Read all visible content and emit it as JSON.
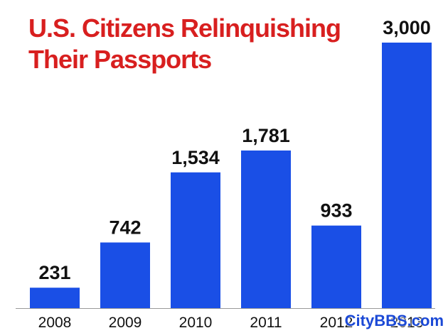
{
  "chart_data": {
    "type": "bar",
    "title_lines": [
      "U.S. Citizens Relinquishing",
      "Their Passports"
    ],
    "categories": [
      "2008",
      "2009",
      "2010",
      "2011",
      "2012",
      "2013"
    ],
    "values": [
      231,
      742,
      1534,
      1781,
      933,
      3000
    ],
    "value_labels": [
      "231",
      "742",
      "1,534",
      "1,781",
      "933",
      "3,000"
    ],
    "ylim": [
      0,
      3000
    ],
    "grid": false,
    "bar_color": "#1a4fe6",
    "title_color": "#d81f1f"
  },
  "watermark": "CityBBS.com"
}
